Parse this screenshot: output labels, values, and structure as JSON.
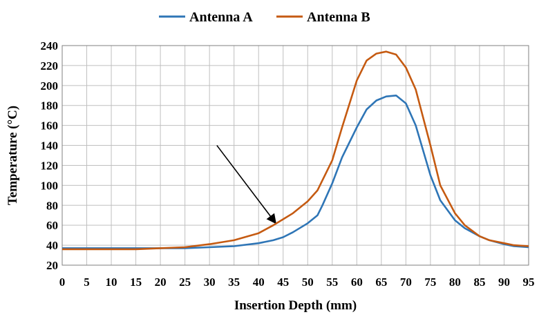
{
  "chart_data": {
    "type": "line",
    "xlabel": "Insertion Depth (mm)",
    "ylabel": "Temperature (°C)",
    "xlim": [
      0,
      95
    ],
    "ylim": [
      20,
      240
    ],
    "xticks": [
      0,
      5,
      10,
      15,
      20,
      25,
      30,
      35,
      40,
      45,
      50,
      55,
      60,
      65,
      70,
      75,
      80,
      85,
      90,
      95
    ],
    "yticks": [
      20,
      40,
      60,
      80,
      100,
      120,
      140,
      160,
      180,
      200,
      220,
      240
    ],
    "grid": true,
    "legend_position": "top-center",
    "series": [
      {
        "name": "Antenna A",
        "color": "#2E75B6",
        "x": [
          0,
          5,
          10,
          15,
          20,
          25,
          30,
          35,
          40,
          43,
          45,
          47,
          50,
          52,
          53,
          55,
          57,
          60,
          62,
          64,
          66,
          68,
          70,
          72,
          75,
          77,
          80,
          82,
          85,
          87,
          90,
          92,
          95
        ],
        "y": [
          37,
          37,
          37,
          37,
          37,
          37,
          38,
          39,
          42,
          45,
          48,
          53,
          62,
          70,
          80,
          102,
          128,
          158,
          176,
          185,
          189,
          190,
          182,
          160,
          110,
          85,
          65,
          57,
          49,
          45,
          41,
          39,
          38
        ]
      },
      {
        "name": "Antenna B",
        "color": "#C55A11",
        "x": [
          0,
          5,
          10,
          15,
          20,
          25,
          30,
          35,
          40,
          43,
          45,
          47,
          50,
          52,
          53,
          55,
          57,
          60,
          62,
          64,
          66,
          68,
          70,
          72,
          75,
          77,
          80,
          82,
          85,
          87,
          90,
          92,
          95
        ],
        "y": [
          36,
          36,
          36,
          36,
          37,
          38,
          41,
          45,
          52,
          60,
          66,
          72,
          84,
          95,
          105,
          125,
          158,
          205,
          225,
          232,
          234,
          231,
          218,
          196,
          140,
          100,
          72,
          60,
          49,
          45,
          42,
          40,
          39
        ]
      }
    ],
    "annotations": [
      {
        "type": "arrow",
        "from": [
          31.5,
          140
        ],
        "to": [
          43.5,
          62
        ]
      }
    ]
  }
}
